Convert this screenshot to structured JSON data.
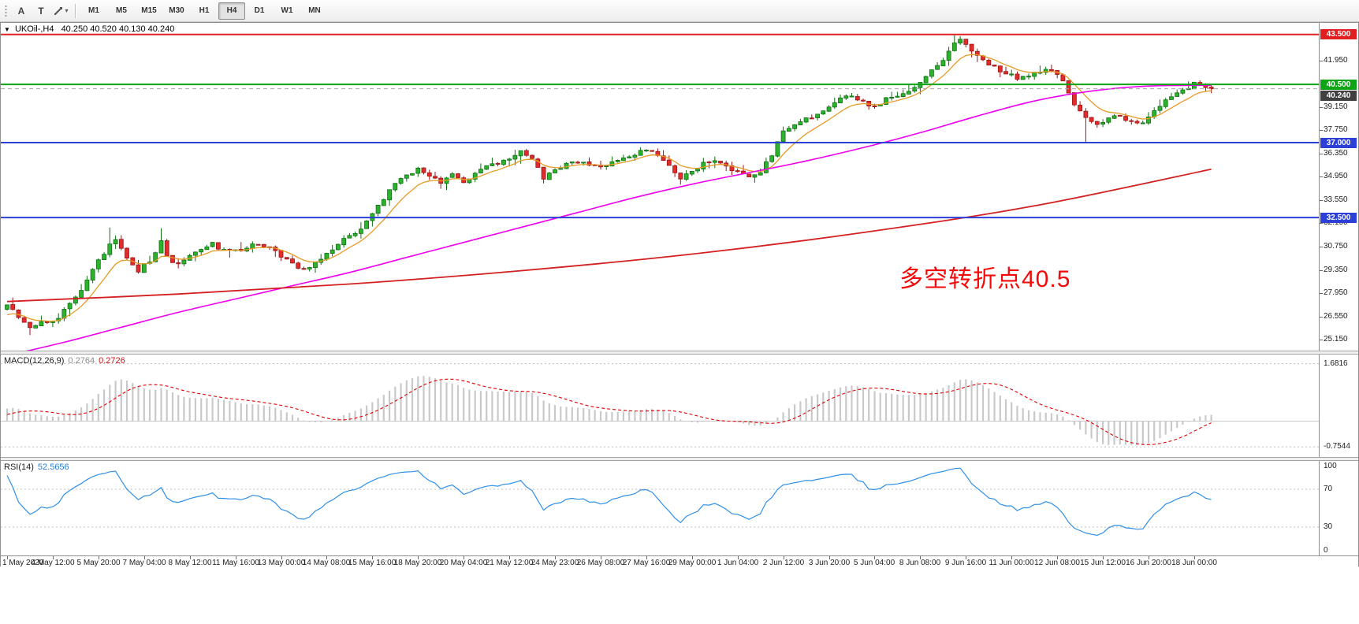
{
  "toolbar": {
    "cursor_tool": "A",
    "text_tool": "T",
    "dropdown_glyph": "▾",
    "timeframes": [
      "M1",
      "M5",
      "M15",
      "M30",
      "H1",
      "H4",
      "D1",
      "W1",
      "MN"
    ],
    "active_timeframe": "H4"
  },
  "chart": {
    "collapse_glyph": "▼",
    "title_symbol": "UKOil-,H4",
    "title_ohlc": "40.250 40.520 40.130 40.240",
    "annotation": "多空转折点40.5",
    "annotation_color": "#f20a0a"
  },
  "macd_panel": {
    "label": "MACD(12,26,9)",
    "value_main": "0.2764",
    "value_signal": "0.2726",
    "axis": [
      "1.6816",
      "-0.7544"
    ]
  },
  "rsi_panel": {
    "label": "RSI(14)",
    "value": "52.5656",
    "axis": [
      "100",
      "70",
      "30",
      "0"
    ]
  },
  "chart_data": {
    "type": "candlestick",
    "symbol": "UKOil-",
    "timeframe": "H4",
    "n_candles": 212,
    "last_price": 40.24,
    "candles_per_label": 8,
    "price_axis": {
      "min": 24.5,
      "max": 44.2,
      "ticks": [
        41.95,
        39.15,
        37.75,
        36.35,
        34.95,
        33.55,
        32.15,
        30.75,
        29.35,
        27.95,
        26.55,
        25.15
      ]
    },
    "levels": [
      {
        "price": 43.5,
        "label": "43.500",
        "color": "#e02020",
        "badge": "#e02020",
        "width": 2,
        "dash": false
      },
      {
        "price": 40.5,
        "label": "40.500",
        "color": "#0fa317",
        "badge": "#0fa317",
        "width": 2,
        "dash": false
      },
      {
        "price": 40.24,
        "label": "40.240",
        "color": "#a8a8a8",
        "badge": "#404040",
        "width": 1,
        "dash": true
      },
      {
        "price": 37.0,
        "label": "37.000",
        "color": "#2c3fd6",
        "badge": "#2c3fd6",
        "width": 2,
        "dash": false
      },
      {
        "price": 32.5,
        "label": "32.500",
        "color": "#2c3fd6",
        "badge": "#2c3fd6",
        "width": 2,
        "dash": false
      }
    ],
    "time_labels": [
      "1 May 2020",
      "4 May 12:00",
      "5 May 20:00",
      "7 May 04:00",
      "8 May 12:00",
      "11 May 16:00",
      "13 May 00:00",
      "14 May 08:00",
      "15 May 16:00",
      "18 May 20:00",
      "20 May 04:00",
      "21 May 12:00",
      "24 May 23:00",
      "26 May 08:00",
      "27 May 16:00",
      "29 May 00:00",
      "1 Jun 04:00",
      "2 Jun 12:00",
      "3 Jun 20:00",
      "5 Jun 04:00",
      "8 Jun 08:00",
      "9 Jun 16:00",
      "11 Jun 00:00",
      "12 Jun 08:00",
      "15 Jun 12:00",
      "16 Jun 20:00",
      "18 Jun 00:00"
    ],
    "lead_in_anchors": [
      [
        -36,
        26.1
      ],
      [
        -22,
        24.9
      ],
      [
        -10,
        25.7
      ],
      [
        -1,
        26.9
      ]
    ],
    "price_path_anchors": [
      [
        0,
        27.3
      ],
      [
        2,
        26.6
      ],
      [
        4,
        25.95
      ],
      [
        6,
        26.3
      ],
      [
        8,
        26.2
      ],
      [
        10,
        26.9
      ],
      [
        12,
        27.7
      ],
      [
        14,
        28.7
      ],
      [
        16,
        29.9
      ],
      [
        18,
        30.8
      ],
      [
        19,
        31.2
      ],
      [
        21,
        30.1
      ],
      [
        23,
        29.3
      ],
      [
        25,
        29.9
      ],
      [
        27,
        31.0
      ],
      [
        28,
        30.1
      ],
      [
        30,
        29.7
      ],
      [
        32,
        30.3
      ],
      [
        34,
        30.6
      ],
      [
        36,
        30.9
      ],
      [
        38,
        30.5
      ],
      [
        41,
        30.5
      ],
      [
        43,
        31.0
      ],
      [
        45,
        30.8
      ],
      [
        48,
        30.2
      ],
      [
        50,
        29.7
      ],
      [
        52,
        29.4
      ],
      [
        54,
        29.8
      ],
      [
        56,
        30.3
      ],
      [
        58,
        30.9
      ],
      [
        60,
        31.4
      ],
      [
        62,
        31.9
      ],
      [
        64,
        32.7
      ],
      [
        66,
        33.6
      ],
      [
        68,
        34.5
      ],
      [
        70,
        35.1
      ],
      [
        72,
        35.4
      ],
      [
        74,
        34.9
      ],
      [
        76,
        34.6
      ],
      [
        78,
        35.1
      ],
      [
        80,
        34.6
      ],
      [
        82,
        35.1
      ],
      [
        84,
        35.5
      ],
      [
        86,
        35.8
      ],
      [
        88,
        36.1
      ],
      [
        90,
        36.4
      ],
      [
        92,
        36.1
      ],
      [
        94,
        34.9
      ],
      [
        96,
        35.3
      ],
      [
        98,
        35.7
      ],
      [
        100,
        35.9
      ],
      [
        102,
        35.7
      ],
      [
        104,
        35.5
      ],
      [
        106,
        35.8
      ],
      [
        108,
        36.1
      ],
      [
        110,
        36.3
      ],
      [
        112,
        36.6
      ],
      [
        114,
        36.2
      ],
      [
        116,
        35.6
      ],
      [
        118,
        34.9
      ],
      [
        120,
        35.3
      ],
      [
        122,
        35.7
      ],
      [
        124,
        35.9
      ],
      [
        126,
        35.6
      ],
      [
        128,
        35.2
      ],
      [
        130,
        34.9
      ],
      [
        132,
        35.2
      ],
      [
        134,
        36.3
      ],
      [
        136,
        37.7
      ],
      [
        138,
        38.1
      ],
      [
        140,
        38.4
      ],
      [
        142,
        38.7
      ],
      [
        144,
        39.2
      ],
      [
        146,
        39.6
      ],
      [
        148,
        39.9
      ],
      [
        150,
        39.4
      ],
      [
        152,
        39.2
      ],
      [
        154,
        39.6
      ],
      [
        156,
        39.9
      ],
      [
        158,
        40.1
      ],
      [
        160,
        40.6
      ],
      [
        162,
        41.3
      ],
      [
        164,
        41.9
      ],
      [
        166,
        42.9
      ],
      [
        167,
        43.2
      ],
      [
        169,
        42.5
      ],
      [
        171,
        42.0
      ],
      [
        173,
        41.5
      ],
      [
        175,
        41.2
      ],
      [
        177,
        40.9
      ],
      [
        179,
        41.1
      ],
      [
        181,
        41.3
      ],
      [
        183,
        41.4
      ],
      [
        185,
        40.6
      ],
      [
        187,
        39.3
      ],
      [
        189,
        38.4
      ],
      [
        191,
        38.0
      ],
      [
        193,
        38.5
      ],
      [
        195,
        38.7
      ],
      [
        197,
        38.2
      ],
      [
        199,
        38.1
      ],
      [
        201,
        38.9
      ],
      [
        203,
        39.6
      ],
      [
        205,
        40.1
      ],
      [
        207,
        40.3
      ],
      [
        208,
        40.6
      ],
      [
        210,
        40.35
      ],
      [
        211,
        40.24
      ]
    ],
    "wick_overrides": {
      "18": {
        "high": 31.9
      },
      "27": {
        "high": 31.85
      },
      "166": {
        "high": 43.45
      },
      "167": {
        "high": 43.4
      },
      "189": {
        "low": 37.0
      },
      "94": {
        "low": 34.55
      }
    },
    "up_color": "#2db22d",
    "up_stroke": "#0e6f12",
    "down_color": "#e02c2c",
    "down_stroke": "#9c1414",
    "ma_fast": {
      "name": "ma-fast-orange",
      "color": "#e69b25",
      "period": 8
    },
    "ma_mid": {
      "name": "ma-mid-magenta",
      "color": "#ee00ee",
      "width": 1.6,
      "points": [
        [
          0,
          24.2
        ],
        [
          10,
          25.0
        ],
        [
          20,
          25.9
        ],
        [
          30,
          26.8
        ],
        [
          40,
          27.6
        ],
        [
          50,
          28.4
        ],
        [
          60,
          29.2
        ],
        [
          70,
          30.1
        ],
        [
          80,
          31.0
        ],
        [
          90,
          31.9
        ],
        [
          100,
          32.8
        ],
        [
          110,
          33.7
        ],
        [
          120,
          34.5
        ],
        [
          130,
          35.2
        ],
        [
          140,
          35.9
        ],
        [
          150,
          36.7
        ],
        [
          160,
          37.6
        ],
        [
          170,
          38.6
        ],
        [
          180,
          39.5
        ],
        [
          190,
          40.1
        ],
        [
          200,
          40.4
        ],
        [
          211,
          40.45
        ]
      ]
    },
    "ma_slow": {
      "name": "ma-slow-red",
      "color": "#d42020",
      "width": 1.8,
      "points": [
        [
          0,
          27.45
        ],
        [
          30,
          27.9
        ],
        [
          60,
          28.5
        ],
        [
          90,
          29.3
        ],
        [
          120,
          30.3
        ],
        [
          150,
          31.6
        ],
        [
          180,
          33.2
        ],
        [
          211,
          35.4
        ]
      ]
    },
    "macd": {
      "fast": 12,
      "slow": 26,
      "signal": 9,
      "range": [
        -1.05,
        1.95
      ],
      "grid": [
        1.6816,
        -0.7544
      ],
      "hist_color": "#c9c9c9",
      "signal_color": "#e00000"
    },
    "rsi": {
      "period": 14,
      "range": [
        0,
        100
      ],
      "levels": [
        70,
        30
      ],
      "axis_ticks": [
        100,
        70,
        30,
        0
      ],
      "color": "#2f8fe8"
    }
  }
}
